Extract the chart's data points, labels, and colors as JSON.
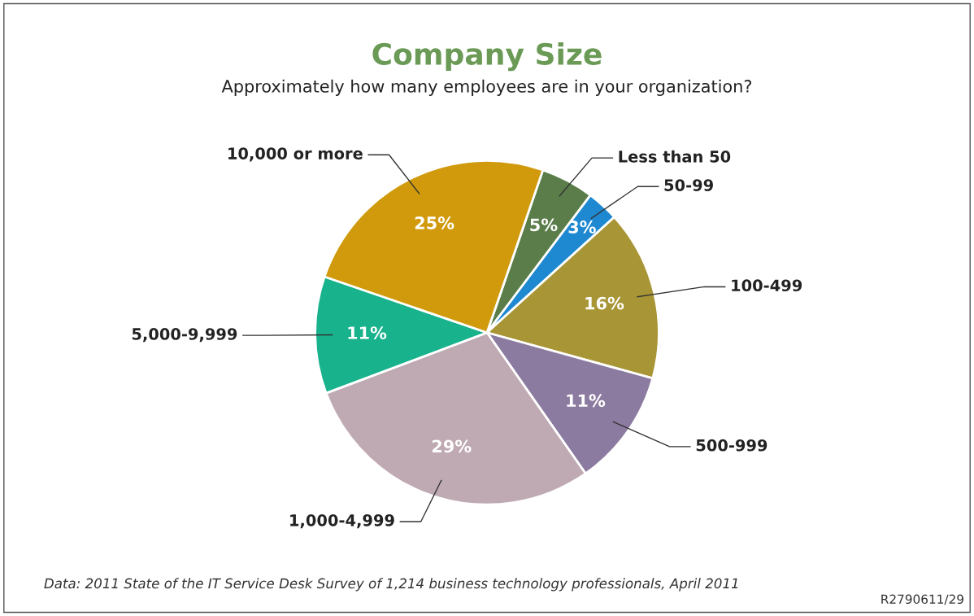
{
  "chart_data": {
    "type": "pie",
    "title": "Company Size",
    "subtitle": "Approximately how many employees are in your organization?",
    "categories": [
      "Less than 50",
      "50-99",
      "100-499",
      "500-999",
      "1,000-4,999",
      "5,000-9,999",
      "10,000 or more"
    ],
    "values": [
      5,
      3,
      16,
      11,
      29,
      11,
      25
    ],
    "colors": [
      "#5a7d4a",
      "#1e88d0",
      "#a89535",
      "#8c7ba0",
      "#bfaab3",
      "#18b28d",
      "#d09a0c"
    ],
    "value_labels": [
      "5%",
      "3%",
      "16%",
      "11%",
      "29%",
      "11%",
      "25%"
    ],
    "annotations": [
      "Data: 2011 State of the IT Service Desk Survey of 1,214 business technology professionals, April 2011",
      "R2790611/29"
    ]
  }
}
